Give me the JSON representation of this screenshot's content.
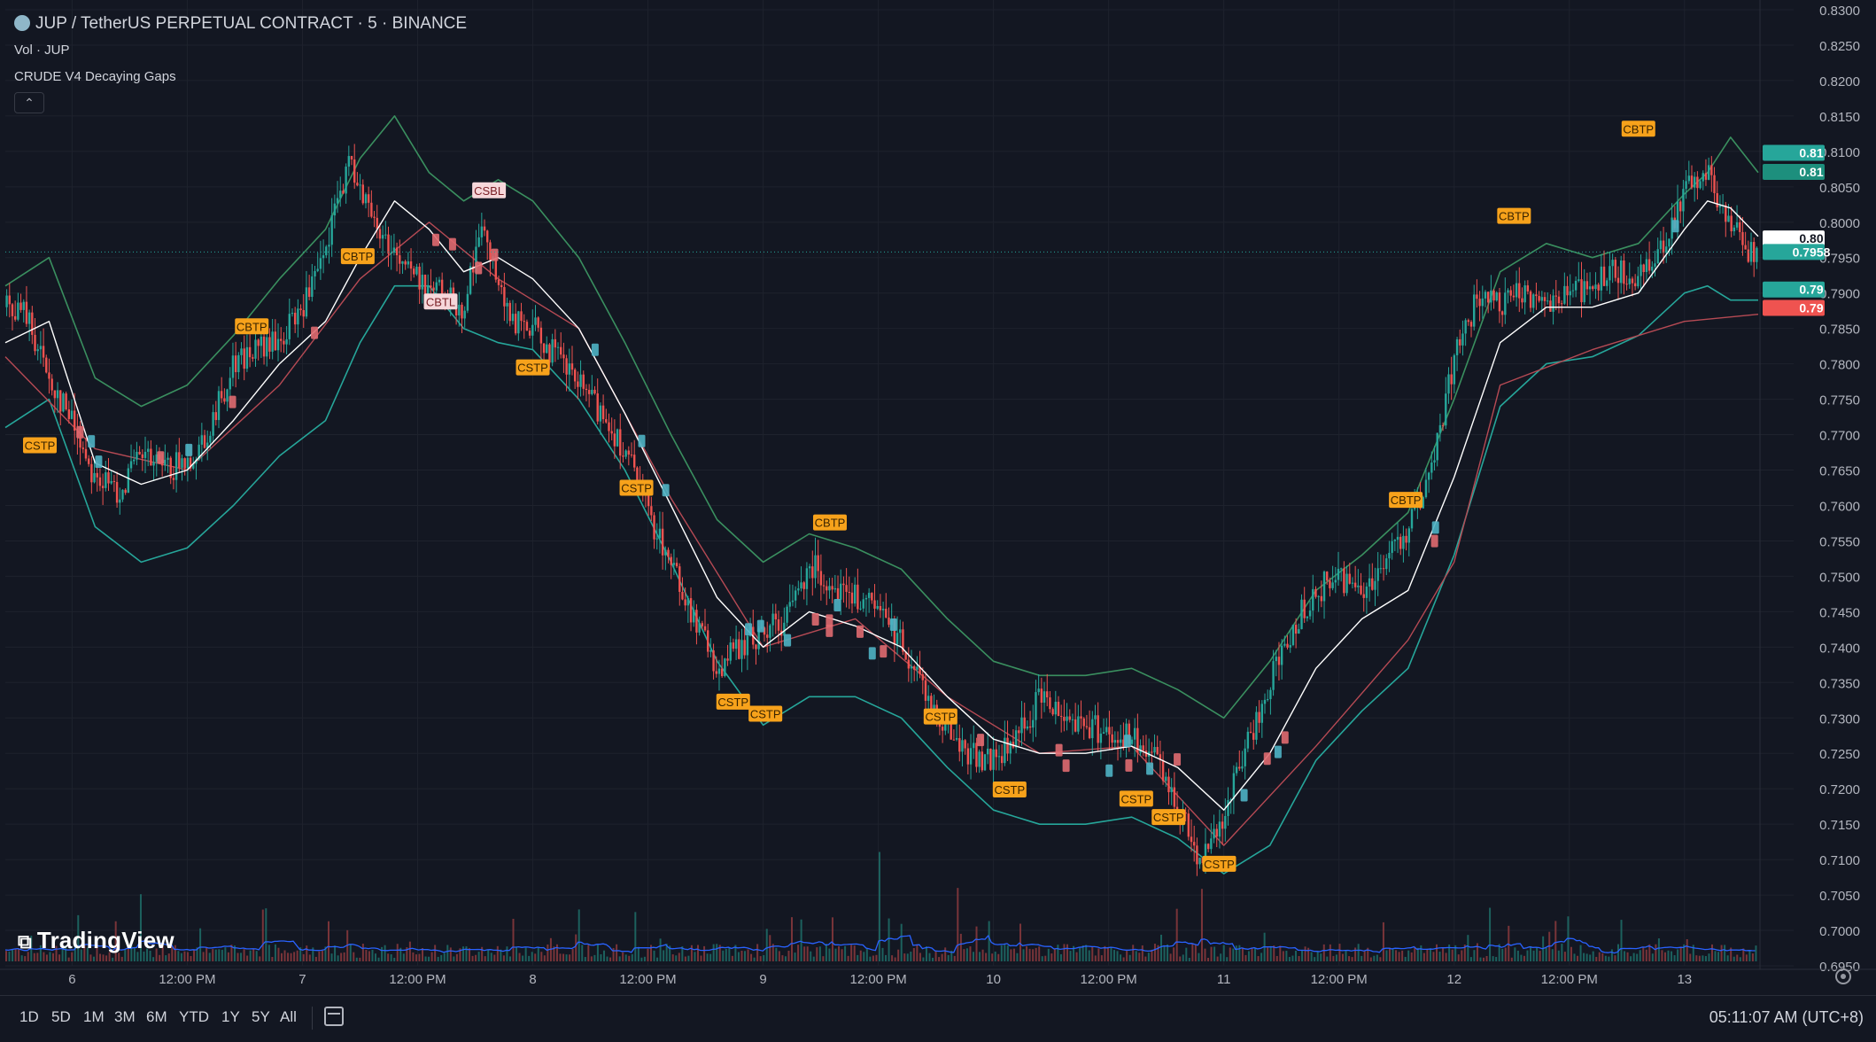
{
  "legend": {
    "symbol": "JUP / TetherUS PERPETUAL CONTRACT · 5 · BINANCE",
    "volume": "Vol · JUP",
    "indicator": "CRUDE V4 Decaying Gaps",
    "collapse_icon": "chevron-up-icon"
  },
  "watermark": "TradingView",
  "bottom_bar": {
    "ranges": [
      "1D",
      "5D",
      "1M",
      "3M",
      "6M",
      "YTD",
      "1Y",
      "5Y",
      "All"
    ],
    "clock": "05:11:07 AM (UTC+8)",
    "calendar_icon": "calendar-icon",
    "settings_icon": "gear-icon"
  },
  "colors": {
    "background": "#131722",
    "grid": "#1e222d",
    "up": "#26a69a",
    "down": "#ef5350",
    "upper_band": "#3a8f5f",
    "lower_band": "#b64a54",
    "mid_line": "#ffffff",
    "volume_ma": "#2962ff",
    "signal": "#f7a21b"
  },
  "chart_data": {
    "type": "candlestick",
    "price_axis": {
      "ticks": [
        "0.8300",
        "0.8250",
        "0.8200",
        "0.8150",
        "0.8100",
        "0.8050",
        "0.8000",
        "0.7950",
        "0.7900",
        "0.7850",
        "0.7800",
        "0.7750",
        "0.7700",
        "0.7650",
        "0.7600",
        "0.7550",
        "0.7500",
        "0.7450",
        "0.7400",
        "0.7350",
        "0.7300",
        "0.7250",
        "0.7200",
        "0.7150",
        "0.7100",
        "0.7050",
        "0.7000",
        "0.6950"
      ],
      "range": [
        0.6945,
        0.83
      ]
    },
    "time_axis": {
      "labels": [
        "6",
        "12:00 PM",
        "7",
        "12:00 PM",
        "8",
        "12:00 PM",
        "9",
        "12:00 PM",
        "10",
        "12:00 PM",
        "11",
        "12:00 PM",
        "12",
        "12:00 PM",
        "13"
      ],
      "positions": [
        0.5,
        1,
        1.5,
        2,
        2.5,
        3,
        3.5,
        4,
        4.5,
        5,
        5.5,
        6,
        6.5,
        7,
        7.5
      ],
      "range": [
        0.21,
        4.0
      ]
    },
    "price_series": [
      [
        0.21,
        0.788
      ],
      [
        0.3,
        0.787
      ],
      [
        0.4,
        0.778
      ],
      [
        0.5,
        0.772
      ],
      [
        0.6,
        0.764
      ],
      [
        0.7,
        0.762
      ],
      [
        0.8,
        0.767
      ],
      [
        0.9,
        0.765
      ],
      [
        1.0,
        0.766
      ],
      [
        1.1,
        0.771
      ],
      [
        1.2,
        0.78
      ],
      [
        1.3,
        0.782
      ],
      [
        1.4,
        0.783
      ],
      [
        1.5,
        0.788
      ],
      [
        1.6,
        0.795
      ],
      [
        1.65,
        0.803
      ],
      [
        1.7,
        0.808
      ],
      [
        1.75,
        0.806
      ],
      [
        1.8,
        0.8
      ],
      [
        1.9,
        0.796
      ],
      [
        2.0,
        0.792
      ],
      [
        2.1,
        0.79
      ],
      [
        2.2,
        0.788
      ],
      [
        2.25,
        0.796
      ],
      [
        2.3,
        0.799
      ],
      [
        2.35,
        0.791
      ],
      [
        2.4,
        0.786
      ],
      [
        2.5,
        0.785
      ],
      [
        2.6,
        0.781
      ],
      [
        2.7,
        0.777
      ],
      [
        2.8,
        0.773
      ],
      [
        2.9,
        0.768
      ],
      [
        3.0,
        0.759
      ],
      [
        3.1,
        0.752
      ],
      [
        3.2,
        0.744
      ],
      [
        3.3,
        0.737
      ],
      [
        3.4,
        0.74
      ],
      [
        3.5,
        0.742
      ],
      [
        3.6,
        0.744
      ],
      [
        3.7,
        0.752
      ],
      [
        3.8,
        0.749
      ],
      [
        3.9,
        0.747
      ],
      [
        4.0,
        0.745
      ],
      [
        4.1,
        0.741
      ],
      [
        4.2,
        0.734
      ],
      [
        4.3,
        0.728
      ],
      [
        4.4,
        0.725
      ],
      [
        4.5,
        0.724
      ],
      [
        4.6,
        0.727
      ],
      [
        4.7,
        0.733
      ],
      [
        4.8,
        0.731
      ],
      [
        4.9,
        0.729
      ],
      [
        5.0,
        0.728
      ],
      [
        5.1,
        0.727
      ],
      [
        5.2,
        0.724
      ],
      [
        5.3,
        0.718
      ],
      [
        5.4,
        0.71
      ],
      [
        5.5,
        0.716
      ],
      [
        5.6,
        0.726
      ],
      [
        5.7,
        0.735
      ],
      [
        5.8,
        0.743
      ],
      [
        5.9,
        0.748
      ],
      [
        6.0,
        0.75
      ],
      [
        6.1,
        0.748
      ],
      [
        6.2,
        0.752
      ],
      [
        6.3,
        0.757
      ],
      [
        6.4,
        0.764
      ],
      [
        6.5,
        0.781
      ],
      [
        6.6,
        0.789
      ],
      [
        6.7,
        0.788
      ],
      [
        6.8,
        0.79
      ],
      [
        6.9,
        0.789
      ],
      [
        7.0,
        0.79
      ],
      [
        7.1,
        0.791
      ],
      [
        7.2,
        0.793
      ],
      [
        7.3,
        0.792
      ],
      [
        7.4,
        0.797
      ],
      [
        7.5,
        0.804
      ],
      [
        7.6,
        0.807
      ],
      [
        7.7,
        0.8
      ],
      [
        7.8,
        0.795
      ],
      [
        7.82,
        0.7958
      ]
    ],
    "bands": {
      "upper": [
        [
          0.21,
          0.791
        ],
        [
          0.4,
          0.795
        ],
        [
          0.6,
          0.778
        ],
        [
          0.8,
          0.774
        ],
        [
          1.0,
          0.777
        ],
        [
          1.2,
          0.784
        ],
        [
          1.4,
          0.792
        ],
        [
          1.6,
          0.799
        ],
        [
          1.75,
          0.809
        ],
        [
          1.9,
          0.815
        ],
        [
          2.05,
          0.807
        ],
        [
          2.2,
          0.803
        ],
        [
          2.35,
          0.806
        ],
        [
          2.5,
          0.803
        ],
        [
          2.7,
          0.795
        ],
        [
          2.9,
          0.783
        ],
        [
          3.1,
          0.77
        ],
        [
          3.3,
          0.758
        ],
        [
          3.5,
          0.752
        ],
        [
          3.7,
          0.756
        ],
        [
          3.9,
          0.754
        ],
        [
          4.1,
          0.751
        ],
        [
          4.3,
          0.744
        ],
        [
          4.5,
          0.738
        ],
        [
          4.7,
          0.736
        ],
        [
          4.9,
          0.736
        ],
        [
          5.1,
          0.737
        ],
        [
          5.3,
          0.734
        ],
        [
          5.5,
          0.73
        ],
        [
          5.7,
          0.738
        ],
        [
          5.9,
          0.748
        ],
        [
          6.1,
          0.753
        ],
        [
          6.3,
          0.759
        ],
        [
          6.5,
          0.775
        ],
        [
          6.7,
          0.793
        ],
        [
          6.9,
          0.797
        ],
        [
          7.1,
          0.795
        ],
        [
          7.3,
          0.797
        ],
        [
          7.5,
          0.804
        ],
        [
          7.6,
          0.807
        ],
        [
          7.7,
          0.812
        ],
        [
          7.82,
          0.807
        ]
      ],
      "lower": [
        [
          0.21,
          0.771
        ],
        [
          0.4,
          0.775
        ],
        [
          0.6,
          0.757
        ],
        [
          0.8,
          0.752
        ],
        [
          1.0,
          0.754
        ],
        [
          1.2,
          0.76
        ],
        [
          1.4,
          0.767
        ],
        [
          1.6,
          0.772
        ],
        [
          1.75,
          0.783
        ],
        [
          1.9,
          0.791
        ],
        [
          2.05,
          0.791
        ],
        [
          2.2,
          0.785
        ],
        [
          2.35,
          0.783
        ],
        [
          2.5,
          0.782
        ],
        [
          2.7,
          0.775
        ],
        [
          2.9,
          0.765
        ],
        [
          3.1,
          0.752
        ],
        [
          3.3,
          0.738
        ],
        [
          3.5,
          0.729
        ],
        [
          3.7,
          0.733
        ],
        [
          3.9,
          0.733
        ],
        [
          4.1,
          0.73
        ],
        [
          4.3,
          0.723
        ],
        [
          4.5,
          0.717
        ],
        [
          4.7,
          0.715
        ],
        [
          4.9,
          0.715
        ],
        [
          5.1,
          0.716
        ],
        [
          5.3,
          0.713
        ],
        [
          5.5,
          0.708
        ],
        [
          5.7,
          0.712
        ],
        [
          5.9,
          0.724
        ],
        [
          6.1,
          0.731
        ],
        [
          6.3,
          0.737
        ],
        [
          6.5,
          0.753
        ],
        [
          6.7,
          0.774
        ],
        [
          6.9,
          0.78
        ],
        [
          7.1,
          0.781
        ],
        [
          7.3,
          0.784
        ],
        [
          7.5,
          0.79
        ],
        [
          7.6,
          0.791
        ],
        [
          7.7,
          0.789
        ],
        [
          7.82,
          0.789
        ]
      ],
      "red": [
        [
          0.21,
          0.781
        ],
        [
          0.6,
          0.768
        ],
        [
          1.0,
          0.765
        ],
        [
          1.4,
          0.777
        ],
        [
          1.75,
          0.792
        ],
        [
          2.05,
          0.8
        ],
        [
          2.35,
          0.792
        ],
        [
          2.7,
          0.785
        ],
        [
          3.1,
          0.761
        ],
        [
          3.5,
          0.74
        ],
        [
          3.9,
          0.744
        ],
        [
          4.3,
          0.733
        ],
        [
          4.7,
          0.725
        ],
        [
          5.1,
          0.726
        ],
        [
          5.5,
          0.712
        ],
        [
          5.9,
          0.726
        ],
        [
          6.3,
          0.741
        ],
        [
          6.5,
          0.752
        ],
        [
          6.7,
          0.777
        ],
        [
          7.1,
          0.782
        ],
        [
          7.5,
          0.786
        ],
        [
          7.82,
          0.787
        ]
      ],
      "mid": [
        [
          0.21,
          0.783
        ],
        [
          0.4,
          0.786
        ],
        [
          0.6,
          0.766
        ],
        [
          0.8,
          0.763
        ],
        [
          1.0,
          0.765
        ],
        [
          1.2,
          0.772
        ],
        [
          1.4,
          0.78
        ],
        [
          1.6,
          0.786
        ],
        [
          1.75,
          0.795
        ],
        [
          1.9,
          0.803
        ],
        [
          2.05,
          0.799
        ],
        [
          2.2,
          0.793
        ],
        [
          2.35,
          0.795
        ],
        [
          2.5,
          0.792
        ],
        [
          2.7,
          0.785
        ],
        [
          2.9,
          0.773
        ],
        [
          3.1,
          0.76
        ],
        [
          3.3,
          0.747
        ],
        [
          3.5,
          0.74
        ],
        [
          3.7,
          0.745
        ],
        [
          3.9,
          0.743
        ],
        [
          4.1,
          0.74
        ],
        [
          4.3,
          0.733
        ],
        [
          4.5,
          0.727
        ],
        [
          4.7,
          0.725
        ],
        [
          4.9,
          0.725
        ],
        [
          5.1,
          0.726
        ],
        [
          5.3,
          0.723
        ],
        [
          5.5,
          0.717
        ],
        [
          5.7,
          0.725
        ],
        [
          5.9,
          0.737
        ],
        [
          6.1,
          0.744
        ],
        [
          6.3,
          0.748
        ],
        [
          6.5,
          0.764
        ],
        [
          6.7,
          0.783
        ],
        [
          6.9,
          0.788
        ],
        [
          7.1,
          0.788
        ],
        [
          7.3,
          0.79
        ],
        [
          7.5,
          0.799
        ],
        [
          7.6,
          0.803
        ],
        [
          7.7,
          0.802
        ],
        [
          7.82,
          0.798
        ]
      ]
    },
    "signals": [
      {
        "label": "CSTP",
        "x": 0.36,
        "y": 0.7685
      },
      {
        "label": "CBTP",
        "x": 1.28,
        "y": 0.7853
      },
      {
        "label": "CBTP",
        "x": 1.74,
        "y": 0.7952
      },
      {
        "label": "CSBL",
        "x": 2.31,
        "y": 0.8045
      },
      {
        "label": "CBTL",
        "x": 2.1,
        "y": 0.7888
      },
      {
        "label": "CSTP",
        "x": 2.5,
        "y": 0.7795
      },
      {
        "label": "CSTP",
        "x": 2.95,
        "y": 0.7625
      },
      {
        "label": "CBTP",
        "x": 3.79,
        "y": 0.7576
      },
      {
        "label": "CSTP",
        "x": 3.37,
        "y": 0.7323
      },
      {
        "label": "CSTP",
        "x": 3.51,
        "y": 0.7306
      },
      {
        "label": "CSTP",
        "x": 4.27,
        "y": 0.7302
      },
      {
        "label": "CSTP",
        "x": 4.57,
        "y": 0.7199
      },
      {
        "label": "CSTP",
        "x": 5.12,
        "y": 0.7186
      },
      {
        "label": "CSTP",
        "x": 5.26,
        "y": 0.716
      },
      {
        "label": "CSTP",
        "x": 5.48,
        "y": 0.7094
      },
      {
        "label": "CBTP",
        "x": 6.29,
        "y": 0.7608
      },
      {
        "label": "CBTP",
        "x": 6.76,
        "y": 0.8009
      },
      {
        "label": "CBTP",
        "x": 7.3,
        "y": 0.8132
      }
    ],
    "price_labels": [
      {
        "value": "0.81",
        "color": "#26a69a"
      },
      {
        "value": "0.81",
        "color": "#1d8f7d"
      },
      {
        "value": "0.80",
        "color": "#ffffff"
      },
      {
        "value": "0.7958",
        "color": "#26a69a"
      },
      {
        "value": "0.79",
        "color": "#26a69a"
      },
      {
        "value": "0.79",
        "color": "#ef5350"
      }
    ],
    "price_label_values": [
      0.8098,
      0.8071,
      0.7977,
      0.7958,
      0.7905,
      0.7879
    ],
    "last_price": 0.7958
  }
}
